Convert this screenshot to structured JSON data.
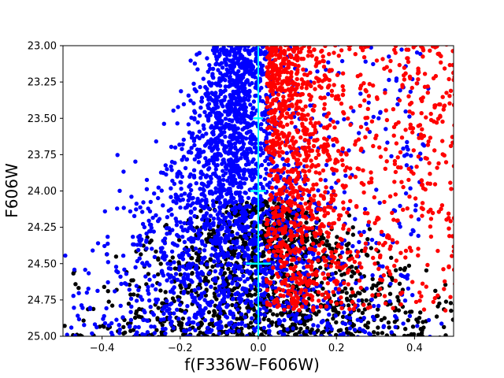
{
  "chart_data": {
    "type": "scatter",
    "xlabel": "f(F336W–F606W)",
    "ylabel": "F606W",
    "xlim": [
      -0.5,
      0.5
    ],
    "ylim": [
      25.0,
      23.0
    ],
    "y_inverted": true,
    "grid": false,
    "x_ticks": [
      "−0.4",
      "−0.2",
      "0.0",
      "0.2",
      "0.4"
    ],
    "x_tick_values": [
      -0.4,
      -0.2,
      0.0,
      0.2,
      0.4
    ],
    "y_ticks": [
      "23.00",
      "23.25",
      "23.50",
      "23.75",
      "24.00",
      "24.25",
      "24.50",
      "24.75",
      "25.00"
    ],
    "y_tick_values": [
      23.0,
      23.25,
      23.5,
      23.75,
      24.0,
      24.25,
      24.5,
      24.75,
      25.0
    ],
    "colors": {
      "black_stars": "#000000",
      "blue_stars": "#0000ff",
      "red_stars": "#ff0000",
      "reference_line": "#00ffff"
    },
    "series": [
      {
        "color": "#000000",
        "distribution": "faint main-sequence population centred near x = 0.0, concentrated below F606W ≈ 24.1 and filling the bottom of the panel",
        "approx_count": 1400,
        "points_sample": [
          {
            "x": -0.3,
            "y": 24.85
          },
          {
            "x": -0.15,
            "y": 24.7
          },
          {
            "x": 0.0,
            "y": 24.5
          },
          {
            "x": 0.08,
            "y": 24.4
          },
          {
            "x": 0.15,
            "y": 24.75
          },
          {
            "x": 0.35,
            "y": 24.9
          },
          {
            "x": -0.05,
            "y": 24.2
          },
          {
            "x": 0.02,
            "y": 24.1
          }
        ]
      },
      {
        "color": "#0000ff",
        "distribution": "dense blue sequence centred at x ≈ −0.05 near F606W 23.0, broadening toward fainter magnitudes and spreading across −0.5 to +0.5 below 24.5",
        "approx_count": 2500,
        "points_sample": [
          {
            "x": -0.06,
            "y": 23.05
          },
          {
            "x": -0.08,
            "y": 23.4
          },
          {
            "x": -0.12,
            "y": 23.8
          },
          {
            "x": -0.18,
            "y": 24.2
          },
          {
            "x": -0.25,
            "y": 24.5
          },
          {
            "x": -0.4,
            "y": 24.8
          },
          {
            "x": 0.1,
            "y": 24.3
          },
          {
            "x": 0.4,
            "y": 24.95
          }
        ]
      },
      {
        "color": "#ff0000",
        "distribution": "red population to the right of the reference line, dense between x 0.0 and 0.2, scattered to x = 0.5, between F606W 23.0 and 24.8",
        "approx_count": 1400,
        "points_sample": [
          {
            "x": 0.05,
            "y": 23.2
          },
          {
            "x": 0.12,
            "y": 23.6
          },
          {
            "x": 0.2,
            "y": 23.9
          },
          {
            "x": 0.3,
            "y": 24.1
          },
          {
            "x": 0.45,
            "y": 24.4
          },
          {
            "x": 0.35,
            "y": 23.4
          },
          {
            "x": 0.1,
            "y": 24.2
          },
          {
            "x": 0.48,
            "y": 24.6
          }
        ]
      }
    ],
    "reference_line": {
      "color": "#00ffff",
      "x": 0.0,
      "error_bars": [
        {
          "y": 23.5,
          "half_width": 0.012
        },
        {
          "y": 24.0,
          "half_width": 0.02
        },
        {
          "y": 24.5,
          "half_width": 0.032
        }
      ]
    }
  }
}
